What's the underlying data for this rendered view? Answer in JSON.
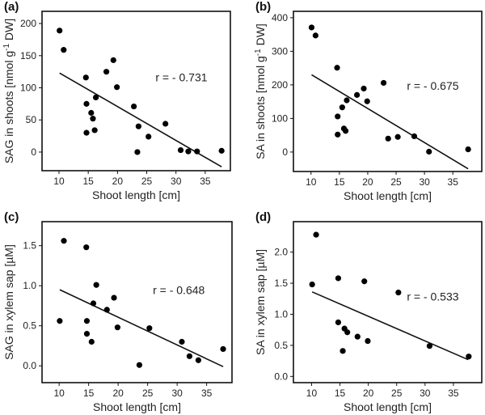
{
  "chart_data": [
    {
      "type": "scatter",
      "panel": "(a)",
      "xlabel": "Shoot length [cm]",
      "ylabel": {
        "pre": "SAG in shoots [nmol g",
        "sup": "-1",
        "post": " DW]"
      },
      "annotation": "r = - 0.731",
      "xlim": [
        7.1,
        39.3
      ],
      "ylim": [
        -29,
        219
      ],
      "xticks": [
        10,
        15,
        20,
        25,
        30,
        35
      ],
      "yticks": [
        0,
        50,
        100,
        150,
        200
      ],
      "ytick_decimals": 0,
      "points": [
        [
          10.1,
          189
        ],
        [
          10.8,
          159
        ],
        [
          14.6,
          116
        ],
        [
          14.7,
          75
        ],
        [
          14.7,
          30
        ],
        [
          15.5,
          61
        ],
        [
          15.8,
          52
        ],
        [
          16.1,
          34
        ],
        [
          16.3,
          85
        ],
        [
          18.1,
          125
        ],
        [
          19.3,
          143
        ],
        [
          19.9,
          101
        ],
        [
          22.8,
          71
        ],
        [
          23.4,
          0
        ],
        [
          23.6,
          40
        ],
        [
          25.3,
          24
        ],
        [
          28.2,
          44
        ],
        [
          30.8,
          3
        ],
        [
          32.1,
          1
        ],
        [
          33.6,
          1
        ],
        [
          37.8,
          2
        ]
      ],
      "fit_line": [
        [
          10.1,
          123
        ],
        [
          37.8,
          -23
        ]
      ]
    },
    {
      "type": "scatter",
      "panel": "(b)",
      "xlabel": "Shoot length [cm]",
      "ylabel": {
        "pre": "SA in shoots [nmol g",
        "sup": "-1",
        "post": " DW]"
      },
      "annotation": "r = - 0.675",
      "xlim": [
        6.9,
        40.1
      ],
      "ylim": [
        -58,
        419
      ],
      "xticks": [
        10,
        15,
        20,
        25,
        30,
        35
      ],
      "yticks": [
        0,
        100,
        200,
        300,
        400
      ],
      "ytick_decimals": 0,
      "points": [
        [
          10.1,
          371
        ],
        [
          10.8,
          347
        ],
        [
          14.6,
          251
        ],
        [
          14.7,
          106
        ],
        [
          14.7,
          52
        ],
        [
          15.5,
          133
        ],
        [
          15.8,
          70
        ],
        [
          16.1,
          63
        ],
        [
          16.3,
          154
        ],
        [
          18.1,
          170
        ],
        [
          19.3,
          189
        ],
        [
          19.9,
          151
        ],
        [
          22.8,
          206
        ],
        [
          23.6,
          40
        ],
        [
          25.3,
          45
        ],
        [
          28.2,
          47
        ],
        [
          30.8,
          1
        ],
        [
          37.7,
          8
        ]
      ],
      "fit_line": [
        [
          10.1,
          230
        ],
        [
          37.7,
          -50
        ]
      ]
    },
    {
      "type": "scatter",
      "panel": "(c)",
      "xlabel": "Shoot length [cm]",
      "ylabel": {
        "pre": "SAG in xylem sap [µM]",
        "sup": "",
        "post": ""
      },
      "annotation": "r = - 0.648",
      "xlim": [
        7.1,
        39.3
      ],
      "ylim": [
        -0.21,
        1.8
      ],
      "xticks": [
        10,
        15,
        20,
        25,
        30,
        35
      ],
      "yticks": [
        0,
        0.5,
        1.0,
        1.5
      ],
      "ytick_decimals": 1,
      "points": [
        [
          10.1,
          0.56
        ],
        [
          10.8,
          1.56
        ],
        [
          14.6,
          1.48
        ],
        [
          14.7,
          0.56
        ],
        [
          14.7,
          0.4
        ],
        [
          15.5,
          0.3
        ],
        [
          15.8,
          0.78
        ],
        [
          16.3,
          1.01
        ],
        [
          18.1,
          0.7
        ],
        [
          19.3,
          0.85
        ],
        [
          19.9,
          0.48
        ],
        [
          23.6,
          0.01
        ],
        [
          25.3,
          0.47
        ],
        [
          30.8,
          0.3
        ],
        [
          32.1,
          0.12
        ],
        [
          33.6,
          0.07
        ],
        [
          37.8,
          0.21
        ]
      ],
      "fit_line": [
        [
          10.1,
          0.95
        ],
        [
          37.8,
          -0.01
        ]
      ]
    },
    {
      "type": "scatter",
      "panel": "(d)",
      "xlabel": "Shoot length [cm]",
      "ylabel": {
        "pre": "SA in xylem sap [µM]",
        "sup": "",
        "post": ""
      },
      "annotation": "r = - 0.533",
      "xlim": [
        6.8,
        40.0
      ],
      "ylim": [
        -0.1,
        2.49
      ],
      "xticks": [
        10,
        15,
        20,
        25,
        30,
        35
      ],
      "yticks": [
        0,
        0.5,
        1.0,
        1.5,
        2.0
      ],
      "ytick_decimals": 1,
      "points": [
        [
          10.1,
          1.48
        ],
        [
          10.8,
          2.28
        ],
        [
          14.7,
          1.58
        ],
        [
          14.7,
          0.87
        ],
        [
          15.5,
          0.41
        ],
        [
          15.8,
          0.77
        ],
        [
          16.3,
          0.71
        ],
        [
          18.1,
          0.64
        ],
        [
          19.3,
          1.53
        ],
        [
          19.9,
          0.57
        ],
        [
          25.3,
          1.35
        ],
        [
          30.8,
          0.49
        ],
        [
          37.7,
          0.32
        ]
      ],
      "fit_line": [
        [
          10.1,
          1.36
        ],
        [
          37.6,
          0.27
        ]
      ]
    }
  ]
}
